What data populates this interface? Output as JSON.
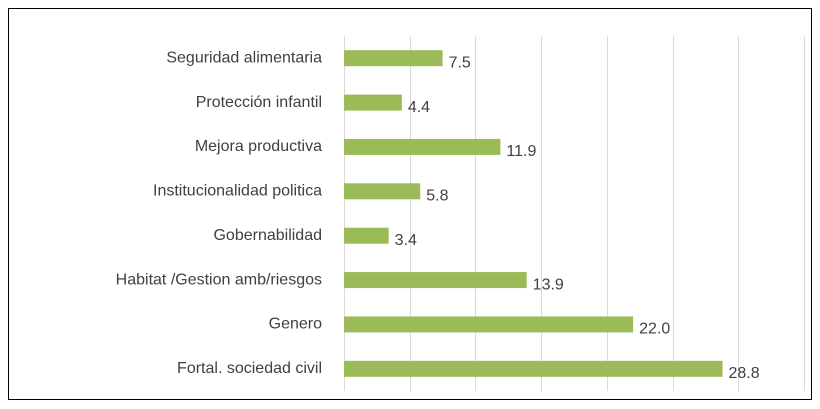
{
  "chart_data": {
    "type": "barh",
    "categories": [
      "Seguridad alimentaria",
      "Protección infantil",
      "Mejora productiva",
      "Institucionalidad politica",
      "Gobernabilidad",
      "Habitat /Gestion amb/riesgos",
      "Genero",
      "Fortal. sociedad civil"
    ],
    "values": [
      7.5,
      4.4,
      11.9,
      5.8,
      3.4,
      13.9,
      22.0,
      28.8
    ],
    "value_labels": [
      "7.5",
      "4.4",
      "11.9",
      "5.8",
      "3.4",
      "13.9",
      "22.0",
      "28.8"
    ],
    "color": "#9bbb59",
    "xlim": [
      0,
      35
    ],
    "xticks": [
      0,
      5,
      10,
      15,
      20,
      25,
      30,
      35
    ],
    "grid": true
  }
}
